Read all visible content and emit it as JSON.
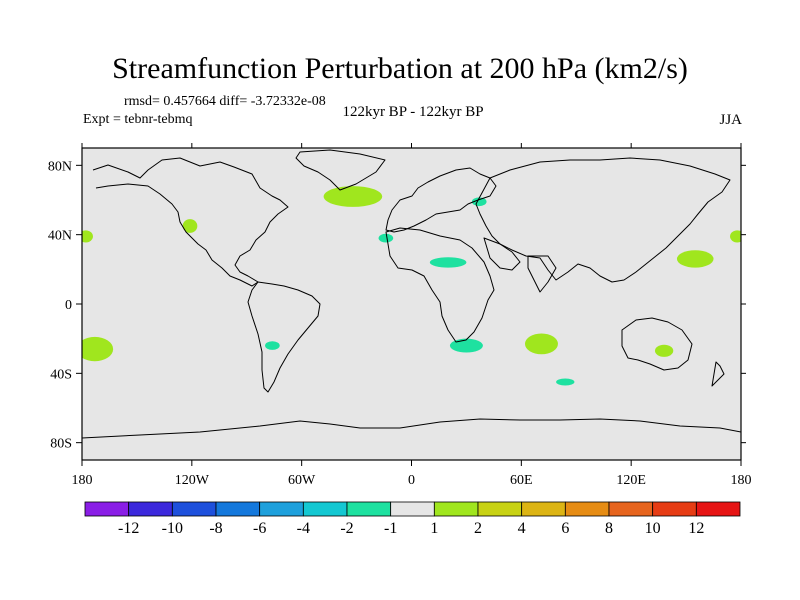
{
  "header": {
    "title": "Streamfunction Perturbation at 200 hPa (km2/s)",
    "stats": "rmsd= 0.457664 diff= -3.72332e-08",
    "experiment": "Expt = tebnr-tebmq",
    "comparison": "122kyr BP - 122kyr BP",
    "season": "JJA"
  },
  "chart_data": {
    "type": "contour-map",
    "title": "Streamfunction Perturbation at 200 hPa (km2/s)",
    "projection": "cylindrical equidistant",
    "lon_range": [
      -180,
      180
    ],
    "lat_range": [
      -90,
      90
    ],
    "x_ticks": [
      {
        "value": -180,
        "label": "180"
      },
      {
        "value": -120,
        "label": "120W"
      },
      {
        "value": -60,
        "label": "60W"
      },
      {
        "value": 0,
        "label": "0"
      },
      {
        "value": 60,
        "label": "60E"
      },
      {
        "value": 120,
        "label": "120E"
      },
      {
        "value": 180,
        "label": "180"
      }
    ],
    "y_ticks": [
      {
        "value": 80,
        "label": "80N"
      },
      {
        "value": 40,
        "label": "40N"
      },
      {
        "value": 0,
        "label": "0"
      },
      {
        "value": -40,
        "label": "40S"
      },
      {
        "value": -80,
        "label": "80S"
      }
    ],
    "colorbar": {
      "labels": [
        "-12",
        "-10",
        "-8",
        "-6",
        "-4",
        "-2",
        "-1",
        "1",
        "2",
        "4",
        "6",
        "8",
        "10",
        "12"
      ],
      "colors": [
        "#8a1ee6",
        "#3c28dc",
        "#1e50dc",
        "#1478dc",
        "#1ea0dc",
        "#14c8d2",
        "#1ee1a0",
        "#e6e6e6",
        "#a0e61e",
        "#c8d214",
        "#dcb414",
        "#e68c14",
        "#e6641e",
        "#e63c14",
        "#e61414"
      ]
    },
    "features": [
      {
        "name": "north-atlantic-greenland",
        "lon": -32,
        "lat": 62,
        "rlon": 16,
        "rlat": 6,
        "level": "1 to 2",
        "color": "#a0e61e"
      },
      {
        "name": "north-pacific-west",
        "lon": -178,
        "lat": 39,
        "rlon": 4,
        "rlat": 3.5,
        "level": "1 to 2",
        "color": "#a0e61e"
      },
      {
        "name": "north-pacific-east",
        "lon": 178,
        "lat": 39,
        "rlon": 4,
        "rlat": 3.5,
        "level": "1 to 2",
        "color": "#a0e61e"
      },
      {
        "name": "western-usa",
        "lon": -121,
        "lat": 45,
        "rlon": 4,
        "rlat": 4,
        "level": "1 to 2",
        "color": "#a0e61e"
      },
      {
        "name": "northwest-pacific",
        "lon": 155,
        "lat": 26,
        "rlon": 10,
        "rlat": 5,
        "level": "1 to 2",
        "color": "#a0e61e"
      },
      {
        "name": "south-pacific",
        "lon": -173,
        "lat": -26,
        "rlon": 10,
        "rlat": 7,
        "level": "1 to 2",
        "color": "#a0e61e"
      },
      {
        "name": "indian-ocean",
        "lon": 71,
        "lat": -23,
        "rlon": 9,
        "rlat": 6,
        "level": "1 to 2",
        "color": "#a0e61e"
      },
      {
        "name": "australia",
        "lon": 138,
        "lat": -27,
        "rlon": 5,
        "rlat": 3.5,
        "level": "1 to 2",
        "color": "#a0e61e"
      },
      {
        "name": "sahara",
        "lon": 20,
        "lat": 24,
        "rlon": 10,
        "rlat": 3,
        "level": "-1 to -2",
        "color": "#1ee1a0"
      },
      {
        "name": "southern-africa",
        "lon": 30,
        "lat": -24,
        "rlon": 9,
        "rlat": 4,
        "level": "-1 to -2",
        "color": "#1ee1a0"
      },
      {
        "name": "iberia",
        "lon": -14,
        "lat": 38,
        "rlon": 4,
        "rlat": 2.5,
        "level": "-1 to -2",
        "color": "#1ee1a0"
      },
      {
        "name": "eastern-europe",
        "lon": 37,
        "lat": 59,
        "rlon": 4,
        "rlat": 2.5,
        "level": "-1 to -2",
        "color": "#1ee1a0"
      },
      {
        "name": "argentina",
        "lon": -76,
        "lat": -24,
        "rlon": 4,
        "rlat": 2.5,
        "level": "-1 to -2",
        "color": "#1ee1a0"
      },
      {
        "name": "southern-ocean",
        "lon": 84,
        "lat": -45,
        "rlon": 5,
        "rlat": 2,
        "level": "-1 to -2",
        "color": "#1ee1a0"
      }
    ]
  }
}
